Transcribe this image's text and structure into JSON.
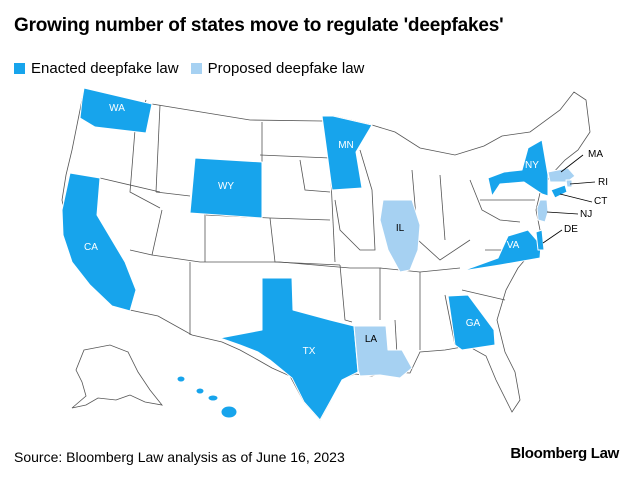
{
  "title": "Growing number of states move to regulate 'deepfakes'",
  "legend": {
    "enacted": {
      "label": "Enacted deepfake law",
      "color": "#17a4ec"
    },
    "proposed": {
      "label": "Proposed deepfake law",
      "color": "#a6d1f2"
    }
  },
  "states": {
    "WA": "WA",
    "CA": "CA",
    "WY": "WY",
    "TX": "TX",
    "MN": "MN",
    "IL": "IL",
    "LA": "LA",
    "GA": "GA",
    "VA": "VA",
    "NY": "NY",
    "MA": "MA",
    "RI": "RI",
    "CT": "CT",
    "NJ": "NJ",
    "DE": "DE"
  },
  "source": "Source: Bloomberg Law analysis as of June 16, 2023",
  "brand": "Bloomberg Law"
}
